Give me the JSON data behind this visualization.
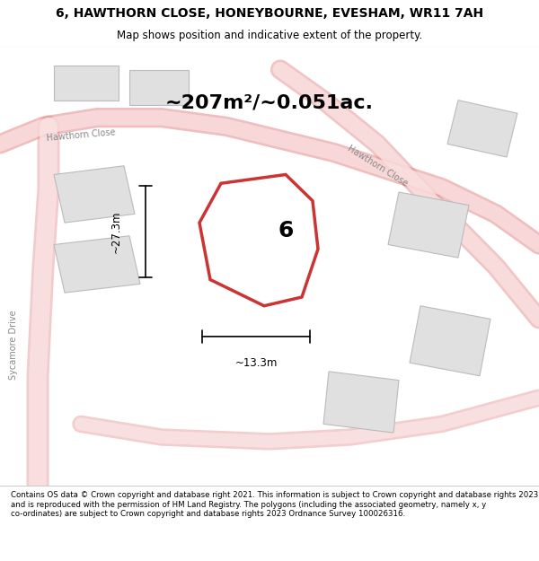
{
  "title_line1": "6, HAWTHORN CLOSE, HONEYBOURNE, EVESHAM, WR11 7AH",
  "title_line2": "Map shows position and indicative extent of the property.",
  "area_text": "~207m²/~0.051ac.",
  "label_number": "6",
  "dim_width": "~13.3m",
  "dim_height": "~27.3m",
  "footer_text": "Contains OS data © Crown copyright and database right 2021. This information is subject to Crown copyright and database rights 2023 and is reproduced with the permission of HM Land Registry. The polygons (including the associated geometry, namely x, y co-ordinates) are subject to Crown copyright and database rights 2023 Ordnance Survey 100026316.",
  "map_bg": "#f5f5f5",
  "road_color_light": "#f5c0c0",
  "road_color_main": "#e08080",
  "building_fill": "#e0e0e0",
  "building_stroke": "#bbbbbb",
  "subject_fill": "#ffffff",
  "subject_stroke": "#cc3333",
  "road_label_color": "#888888"
}
